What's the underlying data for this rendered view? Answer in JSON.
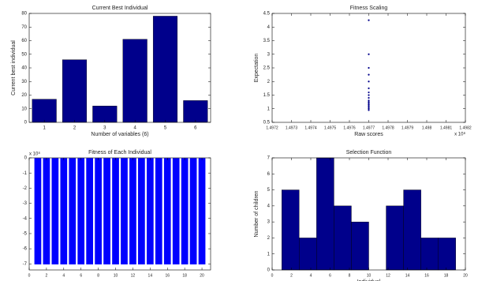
{
  "chart_data": [
    {
      "type": "bar",
      "title": "Current Best Individual",
      "xlabel": "Number of variables (6)",
      "ylabel": "Current best individual",
      "categories": [
        "1",
        "2",
        "3",
        "4",
        "5",
        "6"
      ],
      "values": [
        17,
        46,
        12,
        61,
        78,
        16
      ],
      "color": "#00008b",
      "ylim": [
        0,
        80
      ],
      "yticks": [
        0,
        10,
        20,
        30,
        40,
        50,
        60,
        70,
        80
      ]
    },
    {
      "type": "scatter",
      "title": "Fitness Scaling",
      "xlabel": "Raw scores",
      "ylabel": "Expectation",
      "x_multiplier": "x 10⁸",
      "x": [
        1.4977,
        1.4977,
        1.4977,
        1.4977,
        1.4977,
        1.4977,
        1.4977,
        1.4977,
        1.4977,
        1.4977,
        1.4977,
        1.4977,
        1.4977,
        1.4977,
        1.4977,
        1.4977,
        1.4977
      ],
      "values": [
        4.25,
        3.0,
        2.5,
        2.25,
        2.0,
        1.75,
        1.6,
        1.5,
        1.4,
        1.3,
        1.25,
        1.2,
        1.15,
        1.1,
        1.05,
        1.0,
        0.95
      ],
      "color": "#00008b",
      "xlim": [
        1.4972,
        1.4982
      ],
      "xticks": [
        1.4972,
        1.4973,
        1.4974,
        1.4975,
        1.4976,
        1.4977,
        1.4978,
        1.4979,
        1.498,
        1.4981,
        1.4982
      ],
      "ylim": [
        0.5,
        4.5
      ],
      "yticks": [
        0.5,
        1,
        1.5,
        2,
        2.5,
        3,
        3.5,
        4,
        4.5
      ]
    },
    {
      "type": "bar",
      "title": "Fitness of Each Individual",
      "y_multiplier": "x 10⁸",
      "x": [
        1,
        2,
        3,
        4,
        5,
        6,
        7,
        8,
        9,
        10,
        11,
        12,
        13,
        14,
        15,
        16,
        17,
        18,
        19,
        20
      ],
      "values": [
        -7.05,
        -7.05,
        -7.05,
        -7.05,
        -7.05,
        -7.05,
        -7.05,
        -7.05,
        -7.05,
        -7.05,
        -7.05,
        -7.05,
        -7.05,
        -7.05,
        -7.05,
        -7.05,
        -7.05,
        -7.05,
        -7.05,
        -7.05
      ],
      "color": "#0000ff",
      "xlim": [
        0,
        21
      ],
      "xticks": [
        0,
        2,
        4,
        6,
        8,
        10,
        12,
        14,
        16,
        18,
        20
      ],
      "ylim": [
        -7.4,
        0
      ],
      "yticks": [
        -7,
        -6,
        -5,
        -4,
        -3,
        -2,
        -1,
        0
      ]
    },
    {
      "type": "histogram",
      "title": "Selection Function",
      "xlabel": "Individual",
      "ylabel": "Number of children",
      "bins": [
        1,
        2.8,
        4.6,
        6.4,
        8.2,
        10,
        11.8,
        13.6,
        15.4,
        17.2,
        19
      ],
      "values": [
        5,
        2,
        7,
        4,
        3,
        0,
        4,
        5,
        2,
        2
      ],
      "color": "#00008b",
      "xlim": [
        0,
        20
      ],
      "xticks": [
        0,
        2,
        4,
        6,
        8,
        10,
        12,
        14,
        16,
        18,
        20
      ],
      "ylim": [
        0,
        7
      ],
      "yticks": [
        0,
        1,
        2,
        3,
        4,
        5,
        6,
        7
      ]
    }
  ]
}
